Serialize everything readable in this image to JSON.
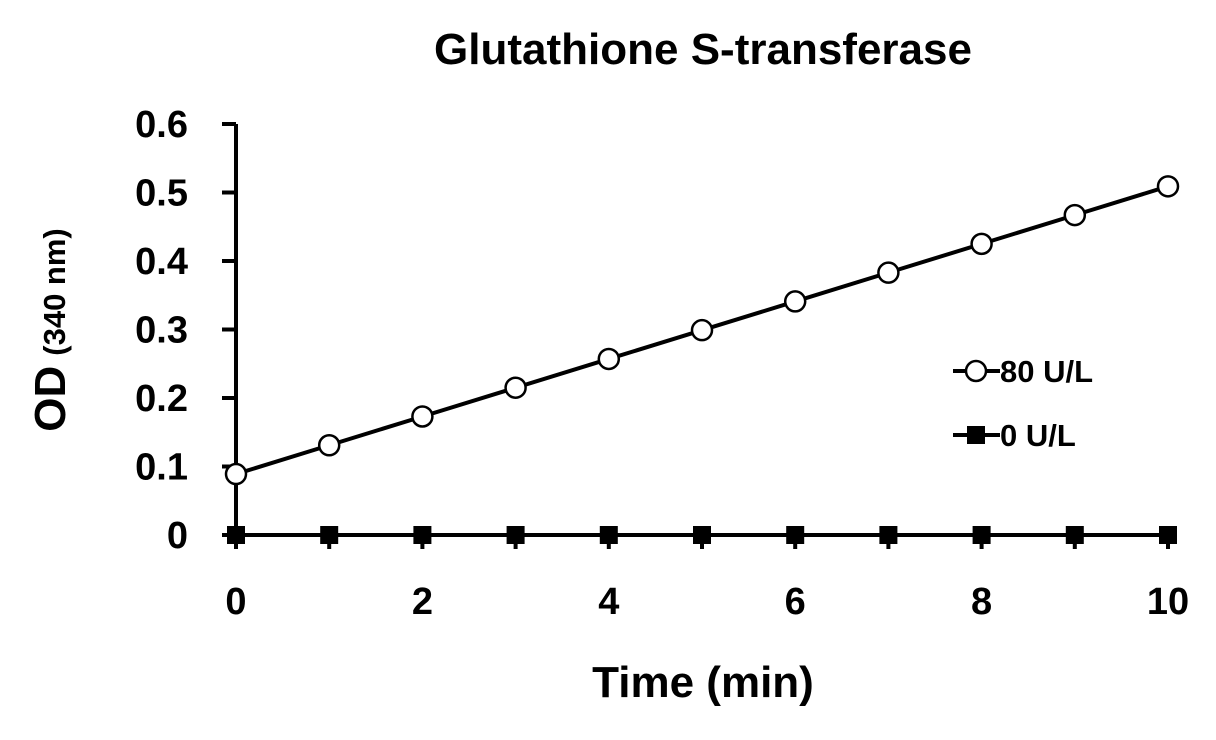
{
  "chart_data": {
    "type": "line",
    "title": "Glutathione S-transferase",
    "xlabel": "Time (min)",
    "ylabel": "OD",
    "ylabel_unit": "(340 nm)",
    "xlim": [
      0,
      10
    ],
    "ylim": [
      0,
      0.6
    ],
    "x_ticks": [
      "0",
      "2",
      "4",
      "6",
      "8",
      "10"
    ],
    "y_ticks": [
      "0",
      "0.1",
      "0.2",
      "0.3",
      "0.4",
      "0.5",
      "0.6"
    ],
    "grid": false,
    "legend_position": "right",
    "x": [
      0,
      1,
      2,
      3,
      4,
      5,
      6,
      7,
      8,
      9,
      10
    ],
    "series": [
      {
        "name": "80 U/L",
        "marker": "open-circle",
        "color": "#000000",
        "values": [
          0.089,
          0.131,
          0.173,
          0.215,
          0.257,
          0.299,
          0.341,
          0.383,
          0.425,
          0.467,
          0.509
        ]
      },
      {
        "name": "0 U/L",
        "marker": "filled-square",
        "color": "#000000",
        "values": [
          0,
          0,
          0,
          0,
          0,
          0,
          0,
          0,
          0,
          0,
          0
        ]
      }
    ]
  }
}
